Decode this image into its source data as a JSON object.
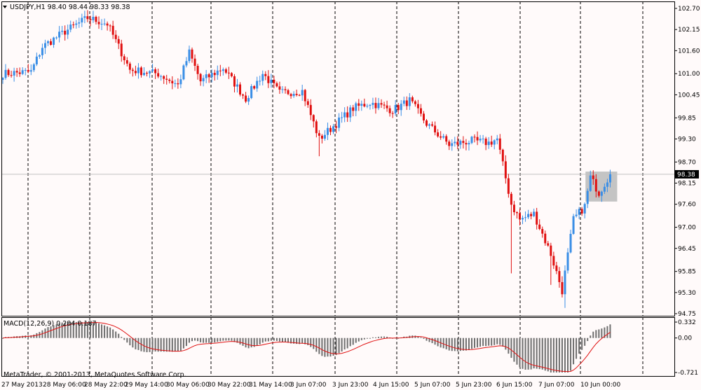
{
  "window": {
    "symbol_title": "USDJPY,H1  98.40 98.44 98.33 98.38",
    "last_price_tag": "98.38",
    "copyright": "MetaTrader, © 2001-2013, MetaQuotes Software Corp.",
    "menu_icon": "triangle-down-icon"
  },
  "colors": {
    "background": "#fffafa",
    "bull": "#3a8ee6",
    "bear": "#e01010",
    "grid": "#000000",
    "macd_hist": "#6e6e6e",
    "macd_signal": "#e01010",
    "price_line": "#c0c0c0",
    "highlight": "#c4c4c4"
  },
  "chart_data": [
    {
      "type": "candlestick",
      "title": "USDJPY,H1",
      "y_tick_labels": [
        "102.70",
        "102.15",
        "101.60",
        "101.00",
        "100.45",
        "99.85",
        "99.30",
        "98.70",
        "98.15",
        "97.60",
        "97.00",
        "96.45",
        "95.85",
        "95.30",
        "94.75"
      ],
      "ylim": [
        94.75,
        102.7
      ],
      "x_tick_labels": [
        "27 May 2013",
        "28 May 06:00",
        "28 May 22:00",
        "29 May 14:00",
        "30 May 06:00",
        "30 May 22:00",
        "31 May 14:00",
        "3 Jun 07:00",
        "3 Jun 23:00",
        "4 Jun 15:00",
        "5 Jun 07:00",
        "5 Jun 23:00",
        "6 Jun 15:00",
        "7 Jun 07:00",
        "10 Jun 00:00"
      ],
      "last_close": 98.38,
      "grid": "vertical dashed",
      "anchors": [
        {
          "i": 0,
          "p": 101.0
        },
        {
          "i": 10,
          "p": 101.05
        },
        {
          "i": 14,
          "p": 101.7
        },
        {
          "i": 22,
          "p": 102.1
        },
        {
          "i": 30,
          "p": 102.45
        },
        {
          "i": 37,
          "p": 102.3
        },
        {
          "i": 45,
          "p": 101.1
        },
        {
          "i": 55,
          "p": 101.0
        },
        {
          "i": 62,
          "p": 100.7
        },
        {
          "i": 66,
          "p": 101.55
        },
        {
          "i": 70,
          "p": 100.8
        },
        {
          "i": 78,
          "p": 101.15
        },
        {
          "i": 86,
          "p": 100.35
        },
        {
          "i": 92,
          "p": 101.0
        },
        {
          "i": 98,
          "p": 100.5
        },
        {
          "i": 106,
          "p": 100.55
        },
        {
          "i": 112,
          "p": 99.3
        },
        {
          "i": 118,
          "p": 99.7
        },
        {
          "i": 124,
          "p": 100.1
        },
        {
          "i": 130,
          "p": 100.25
        },
        {
          "i": 138,
          "p": 100.05
        },
        {
          "i": 144,
          "p": 100.3
        },
        {
          "i": 150,
          "p": 99.7
        },
        {
          "i": 158,
          "p": 99.15
        },
        {
          "i": 166,
          "p": 99.25
        },
        {
          "i": 172,
          "p": 99.2
        },
        {
          "i": 175,
          "p": 99.3
        },
        {
          "i": 180,
          "p": 97.6
        },
        {
          "i": 183,
          "p": 97.2
        },
        {
          "i": 188,
          "p": 97.35
        },
        {
          "i": 194,
          "p": 96.3
        },
        {
          "i": 198,
          "p": 95.35
        },
        {
          "i": 202,
          "p": 97.2
        },
        {
          "i": 206,
          "p": 97.55
        },
        {
          "i": 208,
          "p": 98.3
        },
        {
          "i": 211,
          "p": 97.9
        },
        {
          "i": 215,
          "p": 98.38
        }
      ]
    },
    {
      "type": "histogram",
      "title": "MACD(12,26,9) 0.284 0.187",
      "series": [
        {
          "name": "MACD",
          "style": "bars"
        },
        {
          "name": "Signal",
          "style": "line"
        }
      ],
      "y_tick_labels": [
        "0.332",
        "0.00",
        "-0.721"
      ],
      "ylim": [
        -0.721,
        0.332
      ],
      "current_values": {
        "macd": 0.284,
        "signal": 0.187
      }
    }
  ]
}
